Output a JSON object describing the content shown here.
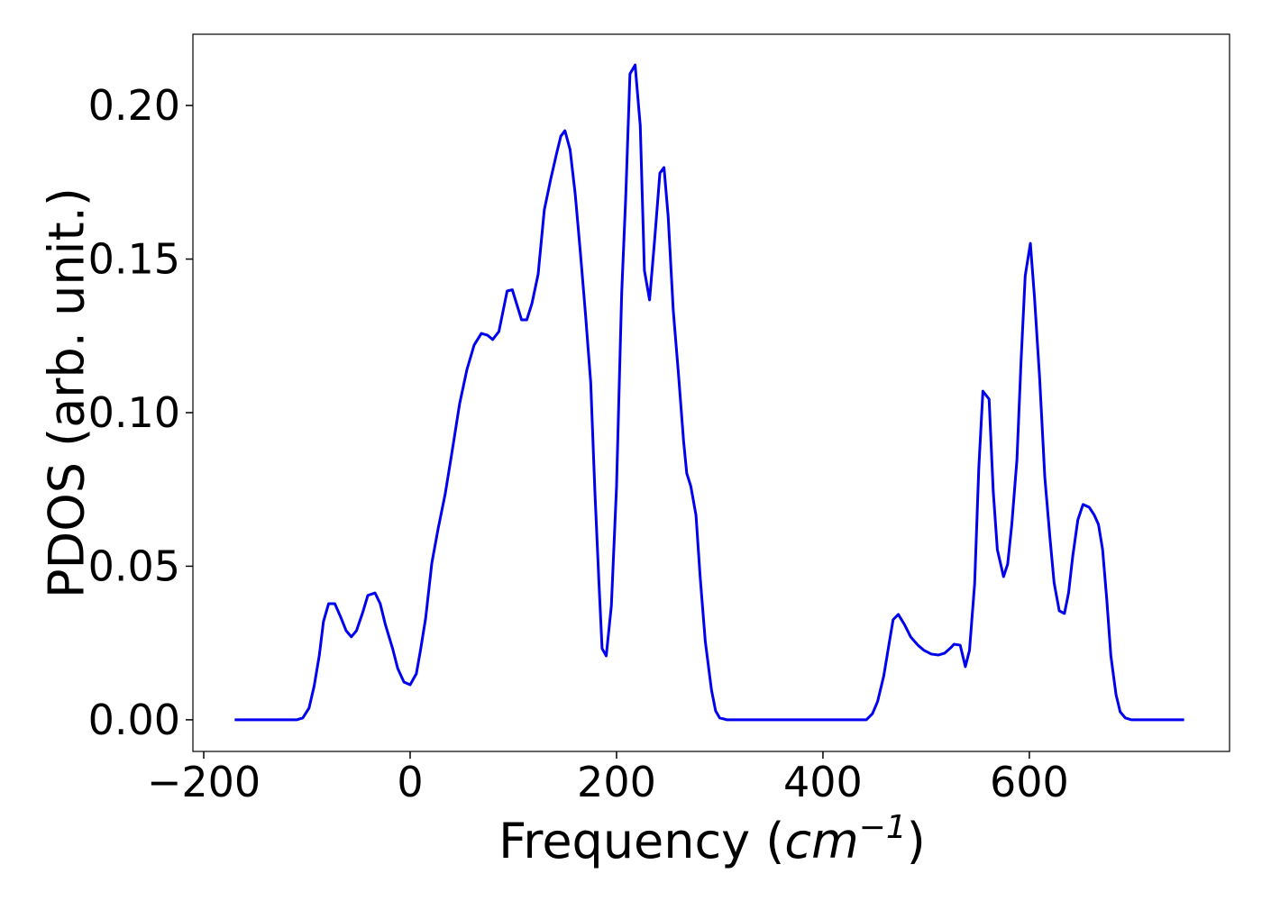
{
  "chart_data": {
    "type": "line",
    "xlabel": [
      "Frequency (",
      "cm",
      "−1",
      ")"
    ],
    "ylabel": "PDOS (arb. unit.)",
    "xlim": [
      -210.5,
      794
    ],
    "ylim": [
      -0.0103,
      0.2232
    ],
    "xticks": [
      {
        "value": -200,
        "label": "−200"
      },
      0,
      200,
      400,
      600
    ],
    "yticks": [
      {
        "value": 0,
        "label": "0.00"
      },
      {
        "value": 0.05,
        "label": "0.05"
      },
      {
        "value": 0.1,
        "label": "0.10"
      },
      {
        "value": 0.15,
        "label": "0.15"
      },
      {
        "value": 0.2,
        "label": "0.20"
      }
    ],
    "grid": false,
    "series": [
      {
        "name": "PDOS",
        "color": "#0000ee",
        "x": [
          -170,
          -110,
          -104,
          -98,
          -93,
          -88,
          -84,
          -79,
          -73,
          -68,
          -62,
          -57,
          -52,
          -46,
          -41,
          -34,
          -29,
          -24,
          -17,
          -12,
          -6,
          0,
          6,
          10,
          15,
          21,
          27,
          34,
          40,
          48,
          55,
          62,
          69,
          75,
          80,
          86,
          94,
          99,
          108,
          113,
          118,
          124,
          130,
          136,
          142,
          146,
          150,
          155,
          160,
          165,
          170,
          175,
          179,
          183,
          186,
          190,
          195,
          200,
          205,
          209,
          213,
          218,
          223,
          227,
          232,
          237,
          242,
          246,
          250,
          255,
          260,
          265,
          268,
          272,
          277,
          281,
          286,
          292,
          296,
          300,
          307,
          442,
          448,
          453,
          459,
          464,
          468,
          473,
          479,
          485,
          492,
          498,
          505,
          512,
          518,
          524,
          527,
          533,
          538,
          542,
          547,
          551,
          555,
          561,
          565,
          569,
          575,
          579,
          583,
          588,
          592,
          596,
          601,
          605,
          610,
          615,
          620,
          624,
          629,
          634,
          638,
          642,
          647,
          652,
          658,
          663,
          667,
          671,
          675,
          679,
          684,
          688,
          693,
          699,
          750
        ],
        "values": [
          0,
          0,
          0.0006,
          0.0038,
          0.011,
          0.021,
          0.032,
          0.0378,
          0.0378,
          0.034,
          0.029,
          0.027,
          0.029,
          0.0349,
          0.0405,
          0.0413,
          0.0378,
          0.031,
          0.0232,
          0.0167,
          0.0123,
          0.0114,
          0.015,
          0.0226,
          0.033,
          0.051,
          0.062,
          0.0736,
          0.086,
          0.103,
          0.114,
          0.122,
          0.1258,
          0.1252,
          0.1238,
          0.1264,
          0.1396,
          0.14,
          0.1302,
          0.1302,
          0.1355,
          0.145,
          0.166,
          0.1757,
          0.1845,
          0.19,
          0.1918,
          0.1856,
          0.171,
          0.152,
          0.1317,
          0.1097,
          0.0745,
          0.0443,
          0.0232,
          0.0208,
          0.0372,
          0.076,
          0.139,
          0.171,
          0.2103,
          0.2132,
          0.1933,
          0.1463,
          0.1367,
          0.1566,
          0.178,
          0.1798,
          0.164,
          0.1331,
          0.1126,
          0.0906,
          0.0803,
          0.076,
          0.0666,
          0.0466,
          0.0255,
          0.0097,
          0.0029,
          0.0006,
          0,
          0,
          0.002,
          0.006,
          0.0144,
          0.0246,
          0.0326,
          0.0343,
          0.031,
          0.027,
          0.0243,
          0.0226,
          0.0214,
          0.0211,
          0.0217,
          0.0235,
          0.0246,
          0.0243,
          0.0173,
          0.0226,
          0.0443,
          0.0818,
          0.107,
          0.1044,
          0.0745,
          0.0554,
          0.0466,
          0.0507,
          0.0636,
          0.0848,
          0.117,
          0.1446,
          0.1551,
          0.1375,
          0.1111,
          0.0789,
          0.0592,
          0.0446,
          0.0355,
          0.0346,
          0.0413,
          0.0531,
          0.0651,
          0.0701,
          0.0692,
          0.0666,
          0.0636,
          0.0554,
          0.0393,
          0.0208,
          0.0082,
          0.0026,
          0.0006,
          0,
          0
        ]
      }
    ]
  }
}
